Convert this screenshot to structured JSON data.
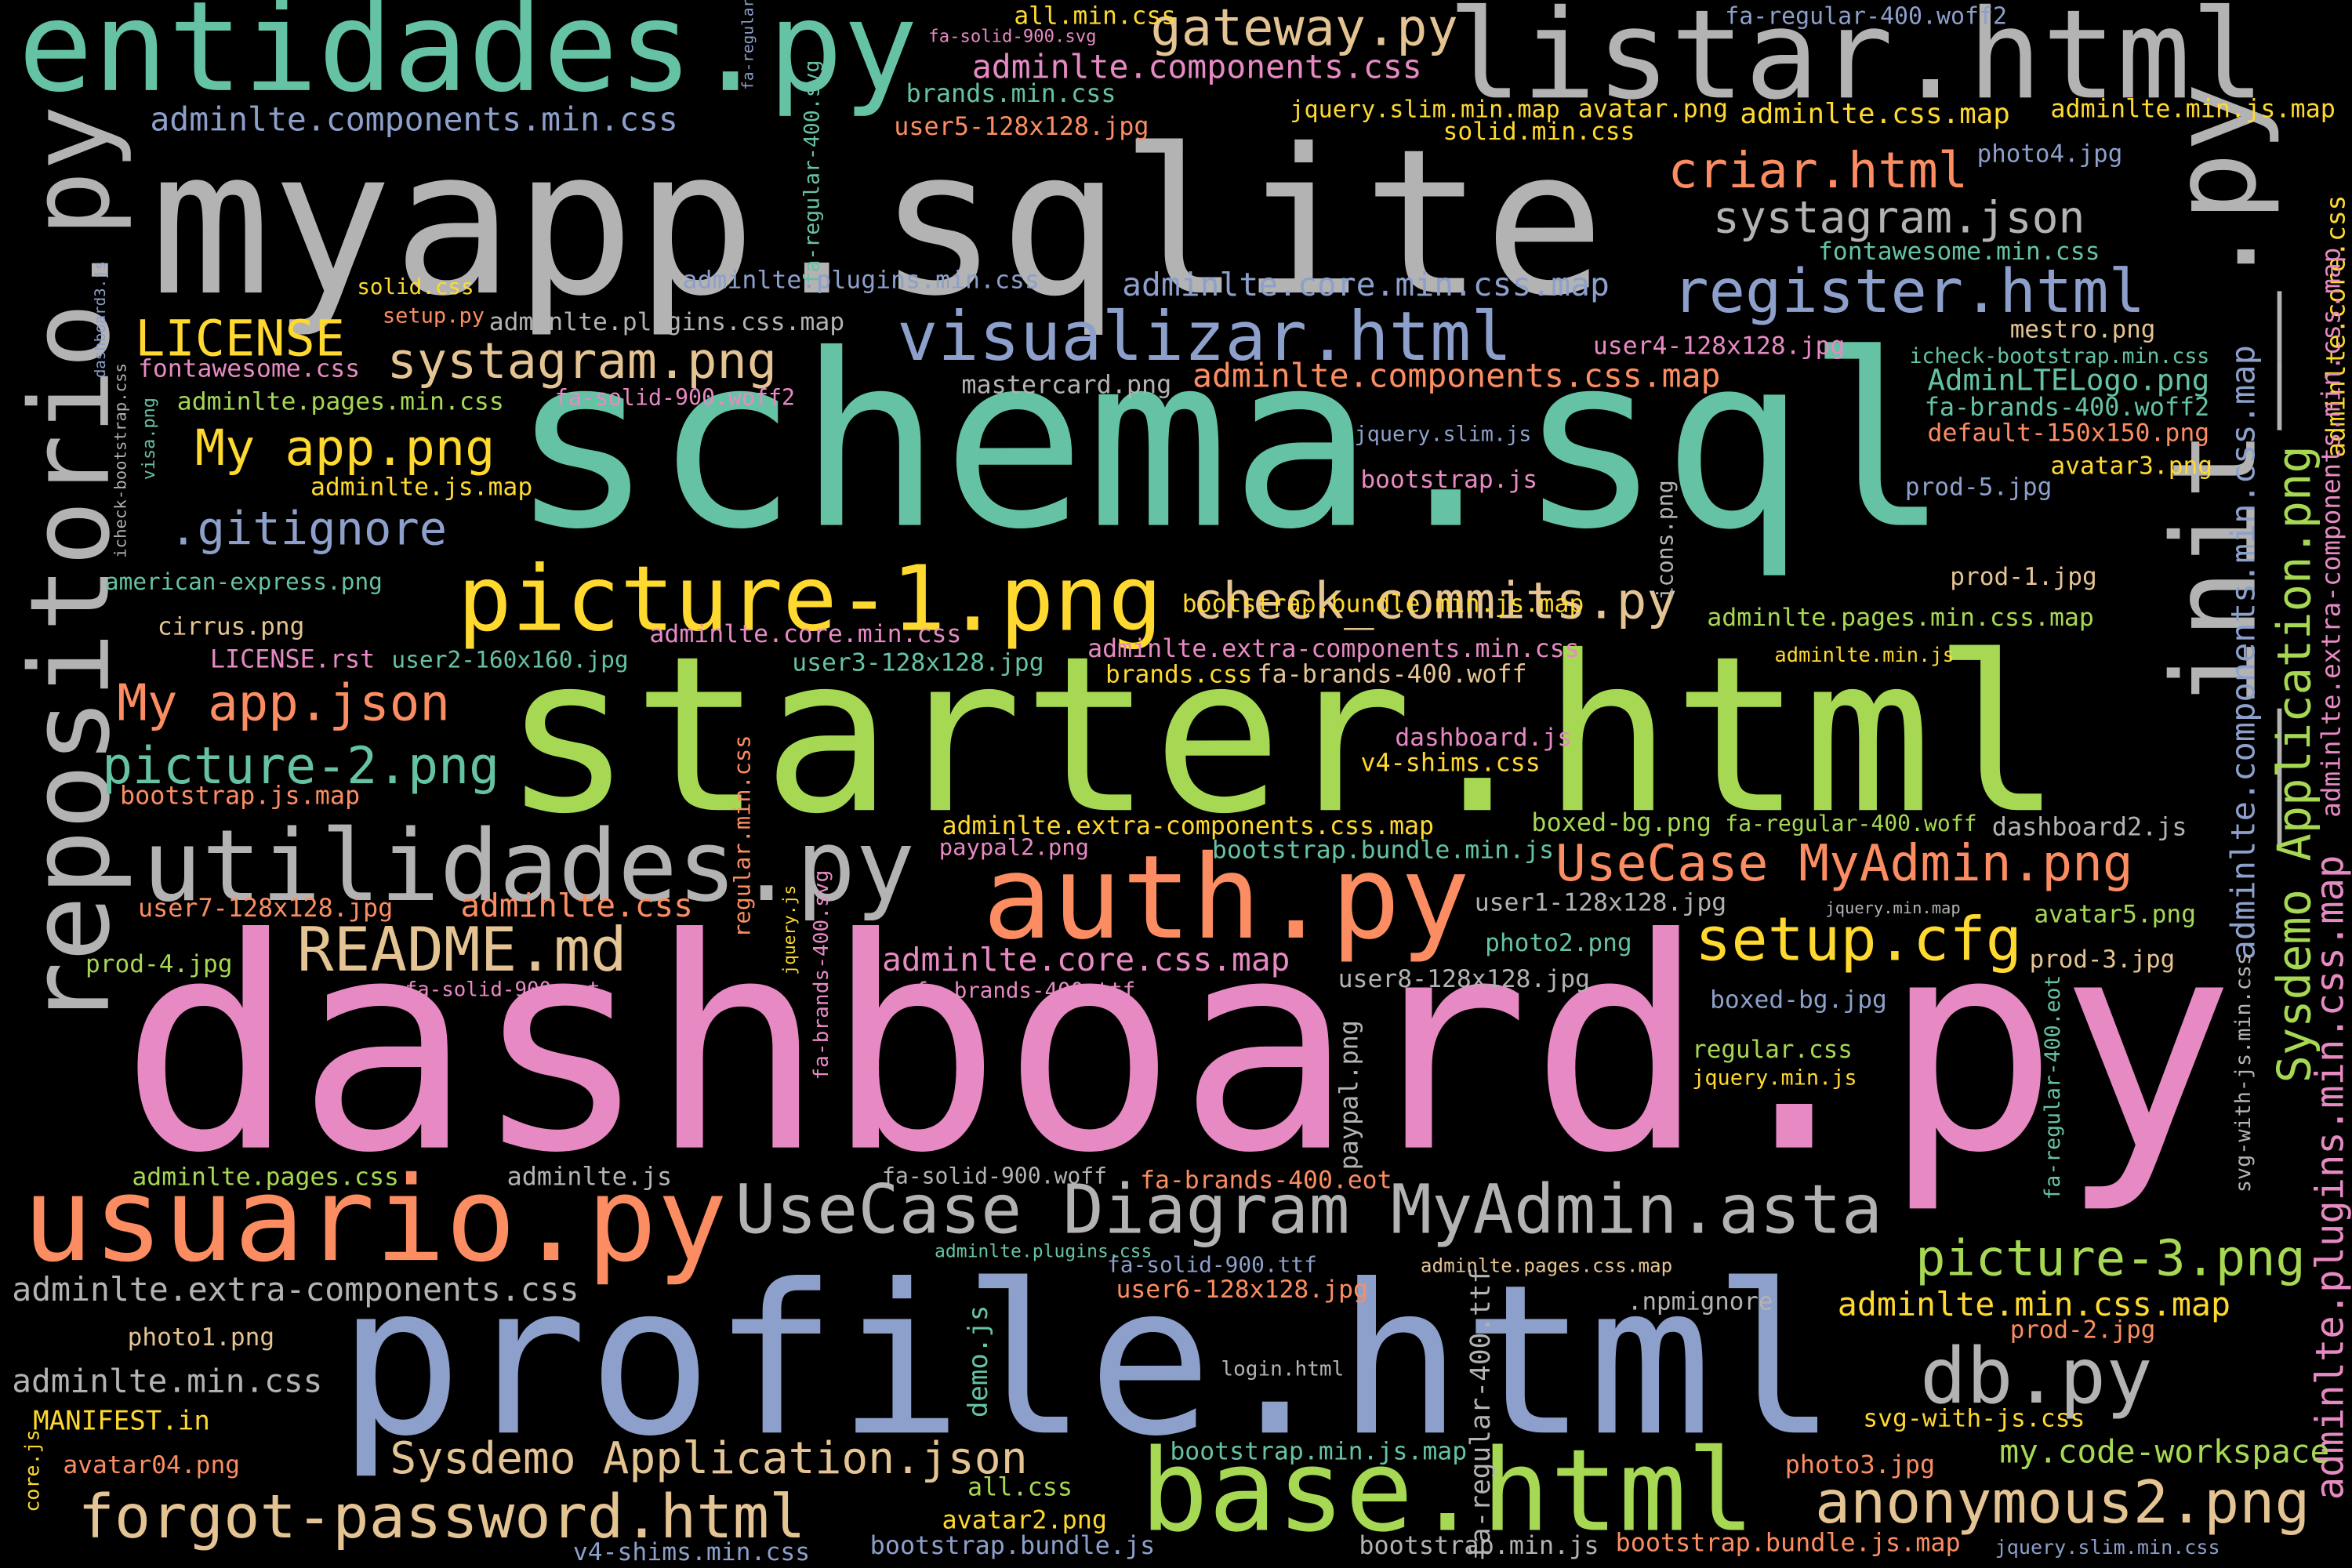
{
  "words": [
    "entidades.py",
    "listar.html",
    "myapp.sqlite",
    "repositorio.py",
    "__init__.py",
    "schema.sql",
    "starter.html",
    "dashboard.py",
    "usuario.py",
    "profile.html",
    "utilidades.py",
    "auth.py",
    "base.html",
    "db.py",
    "forgot-password.html",
    "anonymous2.png",
    "UseCase Diagram MyAdmin.asta",
    "picture-1.png",
    "visualizar.html",
    "gateway.py",
    "criar.html",
    "systagram.json",
    "register.html",
    "systagram.png",
    "LICENSE",
    "My app.png",
    ".gitignore",
    "check_commits.py",
    "My app.json",
    "picture-2.png",
    "README.md",
    "UseCase MyAdmin.png",
    "setup.cfg",
    "picture-3.png",
    "Sysdemo Application.png",
    "adminlte.core.css",
    "adminlte.components.min.css.map",
    "adminlte.extra-components.min.css.map",
    "adminlte.plugins.min.css.map",
    "svg-with-js.min.css",
    "fa-regular-400.eot",
    "Sysdemo Application.json",
    "adminlte.extra-components.css",
    "adminlte.min.css",
    "MANIFEST.in",
    "photo1.png",
    "avatar04.png",
    "core.js",
    "my.code-workspace",
    "adminlte.min.css.map",
    ".npmignore",
    "prod-2.jpg",
    "svg-with-js.css",
    "photo3.jpg",
    "bootstrap.bundle.js.map",
    "jquery.slim.min.css",
    "bootstrap.min.js",
    "bootstrap.min.js.map",
    "all.css",
    "avatar2.png",
    "bootstrap.bundle.js",
    "v4-shims.min.css",
    "demo.js",
    "login.html",
    "fa-regular-400.ttf",
    "user6-128x128.jpg",
    "fa-solid-900.ttf",
    "adminlte.plugins.css",
    "adminlte.pages.css.map",
    "fa-solid-900.woff",
    "fa-brands-400.eot",
    "paypal.png",
    "adminlte.pages.css",
    "adminlte.js",
    "jquery.min.js",
    "regular.css",
    "boxed-bg.jpg",
    "prod-3.jpg",
    "avatar5.png",
    "jquery.min.map",
    "user1-128x128.jpg",
    "photo2.png",
    "user8-128x128.jpg",
    "adminlte.core.css.map",
    "fa-brands-400.ttf",
    "jquery.js",
    "fa-brands-400.svg",
    "regular.min.css",
    "adminlte.css",
    "user7-128x128.jpg",
    "bootstrap.js.map",
    "prod-4.jpg",
    "fa-solid-900.eot",
    "LICENSE.rst",
    "cirrus.png",
    "american-express.png",
    "user2-160x160.jpg",
    "user3-128x128.jpg",
    "adminlte.core.min.css",
    "adminlte.extra-components.min.css",
    "brands.css",
    "fa-brands-400.woff",
    "dashboard.js",
    "v4-shims.css",
    "adminlte.extra-components.css.map",
    "paypal2.png",
    "bootstrap.bundle.min.js",
    "boxed-bg.png",
    "fa-regular-400.woff",
    "dashboard2.js",
    "adminlte.pages.min.css.map",
    "prod-1.jpg",
    "adminlte.min.js",
    "bootstrap.bundle.min.js.map",
    "icons.png",
    "bootstrap.js",
    "jquery.slim.js",
    "mastercard.png",
    "adminlte.components.css.map",
    "user4-128x128.jpg",
    "mestro.png",
    "icheck-bootstrap.min.css",
    "AdminLTELogo.png",
    "fa-brands-400.woff2",
    "default-150x150.png",
    "avatar3.png",
    "prod-5.jpg",
    "adminlte.js.map",
    "fa-solid-900.woff2",
    "adminlte.pages.min.css",
    "fontawesome.css",
    "adminlte.plugins.css.map",
    "setup.py",
    "solid.css",
    "adminlte.plugins.min.css",
    "fa-regular-400.svg",
    "fa-regular-400.svg",
    "brands.min.css",
    "user5-128x128.jpg",
    "adminlte.components.css",
    "all.min.css",
    "fa-solid-900.svg",
    "fa-regular-400.woff2",
    "adminlte.components.min.css",
    "jquery.slim.min.map",
    "avatar.png",
    "adminlte.css.map",
    "adminlte.min.js.map",
    "solid.min.css",
    "photo4.jpg",
    "fontawesome.min.css",
    "adminlte.core.min.css.map",
    "dashboard3.js",
    "icheck-bootstrap.css",
    "visa.png"
  ]
}
